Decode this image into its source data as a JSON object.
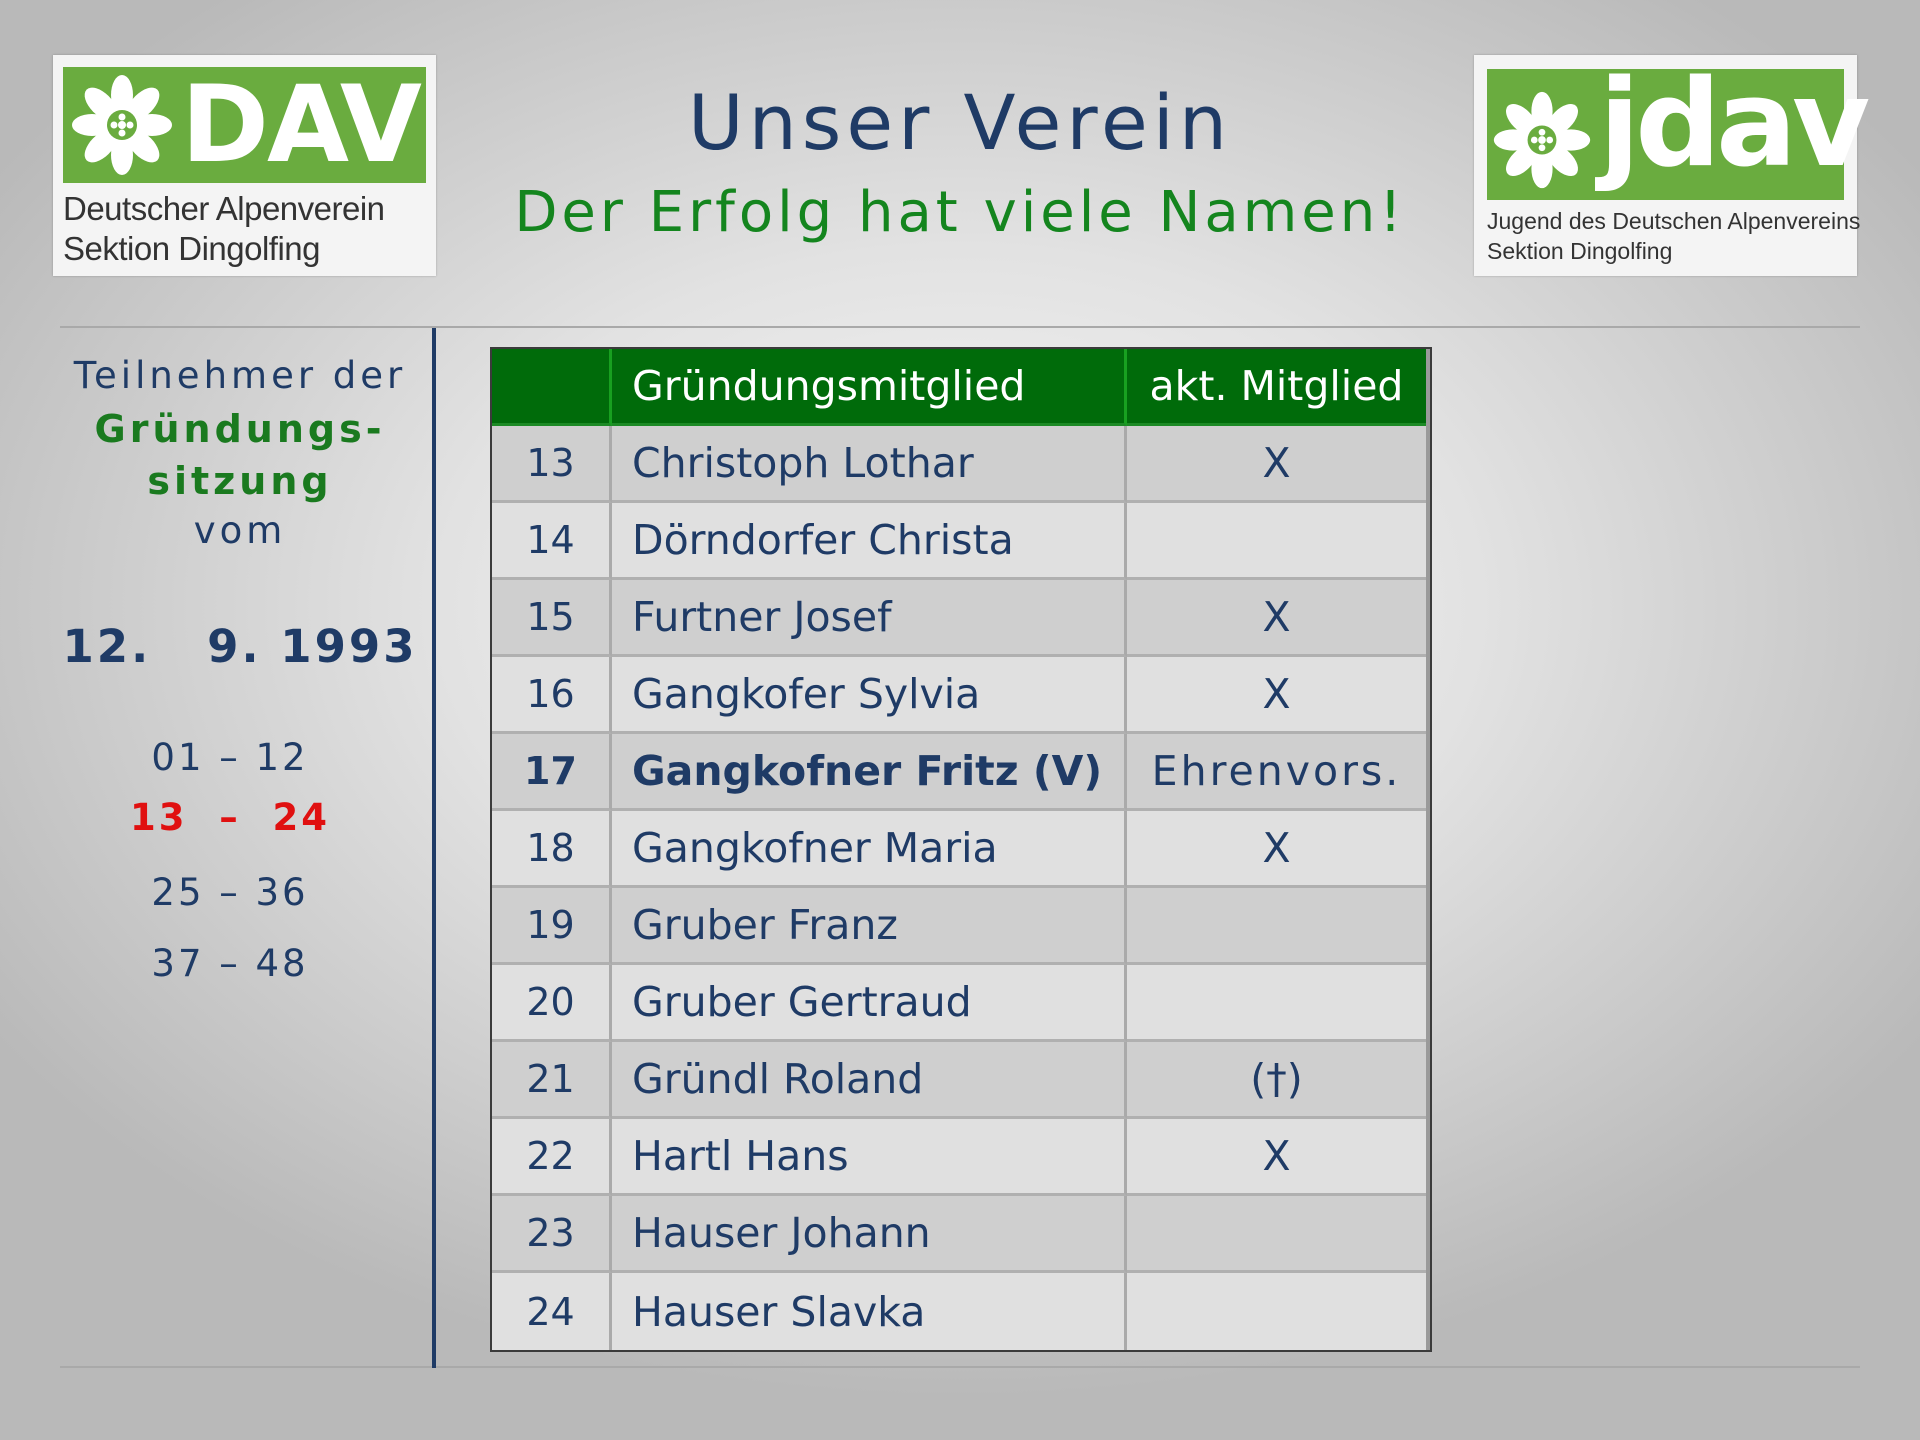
{
  "logos": {
    "dav": {
      "word": "DAV",
      "line1": "Deutscher Alpenverein",
      "line2": "Sektion Dingolfing",
      "icon": "edelweiss-icon",
      "color": "#6aac3f"
    },
    "jdav": {
      "word": "jdav",
      "line1": "Jugend des Deutschen Alpenvereins",
      "line2": "Sektion Dingolfing",
      "icon": "edelweiss-icon",
      "color": "#6aac3f"
    }
  },
  "header": {
    "title": "Unser Verein",
    "subtitle": "Der Erfolg hat viele Namen!"
  },
  "sidebar": {
    "line1": "Teilnehmer der",
    "line2": "Gründungs-",
    "line3": "sitzung",
    "line4": "vom",
    "date": "12.   9. 1993",
    "ranges": [
      {
        "label": "01 – 12",
        "active": false
      },
      {
        "label": "13  –  24",
        "active": true
      },
      {
        "label": "25 – 36",
        "active": false
      },
      {
        "label": "37 – 48",
        "active": false
      }
    ]
  },
  "table": {
    "headers": [
      "",
      "Gründungsmitglied",
      "akt. Mitglied"
    ],
    "rows": [
      {
        "no": "13",
        "name": "Christoph Lothar",
        "akt": "X",
        "bold": false
      },
      {
        "no": "14",
        "name": "Dörndorfer Christa",
        "akt": "",
        "bold": false
      },
      {
        "no": "15",
        "name": "Furtner Josef",
        "akt": "X",
        "bold": false
      },
      {
        "no": "16",
        "name": "Gangkofer Sylvia",
        "akt": "X",
        "bold": false
      },
      {
        "no": "17",
        "name": "Gangkofner Fritz (V)",
        "akt": "Ehrenvors.",
        "bold": true
      },
      {
        "no": "18",
        "name": "Gangkofner Maria",
        "akt": "X",
        "bold": false
      },
      {
        "no": "19",
        "name": "Gruber Franz",
        "akt": "",
        "bold": false
      },
      {
        "no": "20",
        "name": "Gruber Gertraud",
        "akt": "",
        "bold": false
      },
      {
        "no": "21",
        "name": "Gründl Roland",
        "akt": "(†)",
        "bold": false
      },
      {
        "no": "22",
        "name": "Hartl Hans",
        "akt": "X",
        "bold": false
      },
      {
        "no": "23",
        "name": "Hauser Johann",
        "akt": "",
        "bold": false
      },
      {
        "no": "24",
        "name": "Hauser Slavka",
        "akt": "",
        "bold": false
      }
    ]
  },
  "colors": {
    "title": "#1f3b66",
    "subtitle": "#14851e",
    "table_header": "#006b0a",
    "active_range": "#e01010"
  }
}
